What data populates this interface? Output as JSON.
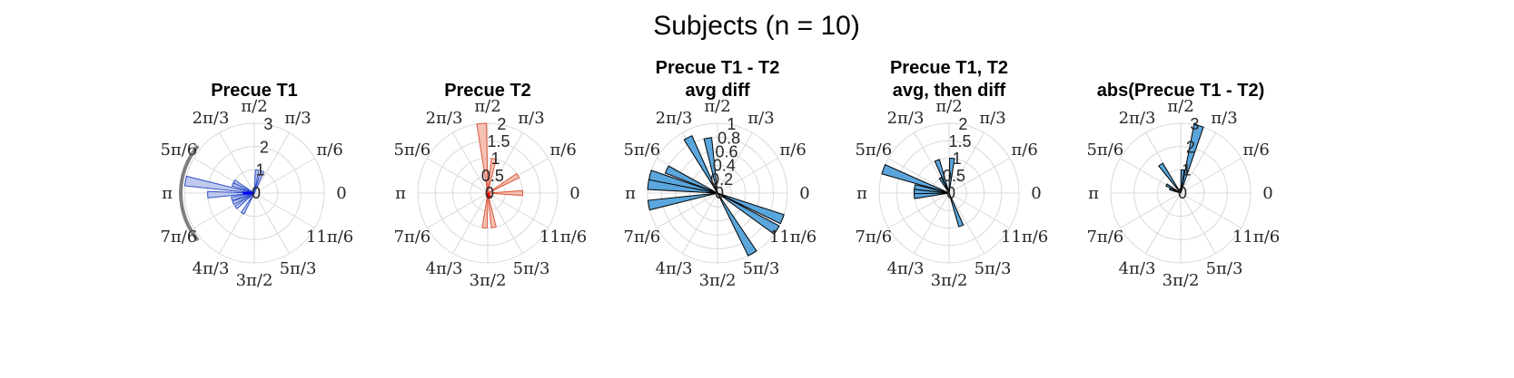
{
  "figure": {
    "title": "Subjects (n = 10)",
    "theta_tick_labels": [
      "0",
      "π/6",
      "π/3",
      "π/2",
      "2π/3",
      "5π/6",
      "π",
      "7π/6",
      "4π/3",
      "3π/2",
      "5π/3",
      "11π/6"
    ],
    "colors": {
      "grid": "#d9d9d9",
      "axis_text": "#262626",
      "blue_fill": "#b3bfea",
      "blue_edge": "#3050c8",
      "blue_mean": "#0000ff",
      "red_fill": "#f4b6a8",
      "red_edge": "#d95a3e",
      "red_mean": "#ff0000",
      "sky_fill": "#5aa6dc",
      "black_edge": "#000000",
      "arc": "#808080"
    }
  },
  "chart_data": [
    {
      "type": "polar-histogram",
      "title": [
        "Precue T1"
      ],
      "rmax": 3,
      "r_ticks": [
        "0",
        "1",
        "2",
        "3"
      ],
      "r_tick_values": [
        0,
        1,
        2,
        3
      ],
      "style": {
        "fill": "#b3bfea",
        "edge": "#3050c8",
        "opacity": 0.85
      },
      "bars": [
        {
          "theta": 70,
          "r": 1
        },
        {
          "theta": 83,
          "r": 1
        },
        {
          "theta": 150,
          "r": 1
        },
        {
          "theta": 158,
          "r": 1
        },
        {
          "theta": 170,
          "r": 3
        },
        {
          "theta": 182,
          "r": 2
        },
        {
          "theta": 194,
          "r": 1
        },
        {
          "theta": 205,
          "r": 1
        },
        {
          "theta": 218,
          "r": 1
        },
        {
          "theta": 240,
          "r": 1
        }
      ],
      "mean_vector": {
        "theta": 180,
        "r": 0.5,
        "color": "#0000ff"
      },
      "arc": {
        "from_theta": 140,
        "to_theta": 220,
        "color": "#808080"
      }
    },
    {
      "type": "polar-histogram",
      "title": [
        "Precue T2"
      ],
      "rmax": 2,
      "r_ticks": [
        "0",
        "0.5",
        "1",
        "1.5",
        "2"
      ],
      "r_tick_values": [
        0,
        0.5,
        1,
        1.5,
        2
      ],
      "style": {
        "fill": "#f4b6a8",
        "edge": "#d95a3e",
        "opacity": 0.85
      },
      "bars": [
        {
          "theta": 95,
          "r": 2
        },
        {
          "theta": 80,
          "r": 1
        },
        {
          "theta": 30,
          "r": 1
        },
        {
          "theta": 0,
          "r": 1
        },
        {
          "theta": 265,
          "r": 1
        },
        {
          "theta": 280,
          "r": 1
        }
      ],
      "mean_vector": {
        "theta": 300,
        "r": 0.15,
        "color": "#ff0000"
      }
    },
    {
      "type": "polar-histogram",
      "title": [
        "Precue T1 - T2",
        "avg diff"
      ],
      "rmax": 1,
      "r_ticks": [
        "0",
        "0.2",
        "0.4",
        "0.6",
        "0.8",
        "1"
      ],
      "r_tick_values": [
        0,
        0.2,
        0.4,
        0.6,
        0.8,
        1
      ],
      "style": {
        "fill": "#5aa6dc",
        "edge": "#000000",
        "opacity": 1
      },
      "bars": [
        {
          "theta": 100,
          "r": 0.8
        },
        {
          "theta": 118,
          "r": 0.9
        },
        {
          "theta": 155,
          "r": 0.8
        },
        {
          "theta": 165,
          "r": 1
        },
        {
          "theta": 173,
          "r": 1
        },
        {
          "theta": 190,
          "r": 1
        },
        {
          "theta": 338,
          "r": 1
        },
        {
          "theta": 328,
          "r": 1
        },
        {
          "theta": 300,
          "r": 1
        }
      ]
    },
    {
      "type": "polar-histogram",
      "title": [
        "Precue T1, T2",
        "avg, then diff"
      ],
      "rmax": 2,
      "r_ticks": [
        "0",
        "0.5",
        "1",
        "1.5",
        "2"
      ],
      "r_tick_values": [
        0,
        0.5,
        1,
        1.5,
        2
      ],
      "style": {
        "fill": "#5aa6dc",
        "edge": "#000000",
        "opacity": 1
      },
      "bars": [
        {
          "theta": 85,
          "r": 1
        },
        {
          "theta": 110,
          "r": 1
        },
        {
          "theta": 160,
          "r": 2
        },
        {
          "theta": 170,
          "r": 1
        },
        {
          "theta": 178,
          "r": 1
        },
        {
          "theta": 185,
          "r": 1
        },
        {
          "theta": 120,
          "r": 0.5
        },
        {
          "theta": 290,
          "r": 1
        }
      ]
    },
    {
      "type": "polar-histogram",
      "title": [
        "abs(Precue T1 - T2)"
      ],
      "rmax": 3,
      "r_ticks": [
        "0",
        "1",
        "2",
        "3"
      ],
      "r_tick_values": [
        0,
        1,
        2,
        3
      ],
      "style": {
        "fill": "#5aa6dc",
        "edge": "#000000",
        "opacity": 1
      },
      "bars": [
        {
          "theta": 75,
          "r": 3
        },
        {
          "theta": 85,
          "r": 1
        },
        {
          "theta": 125,
          "r": 1.5
        },
        {
          "theta": 150,
          "r": 0.7
        },
        {
          "theta": 160,
          "r": 0.5
        }
      ]
    }
  ]
}
